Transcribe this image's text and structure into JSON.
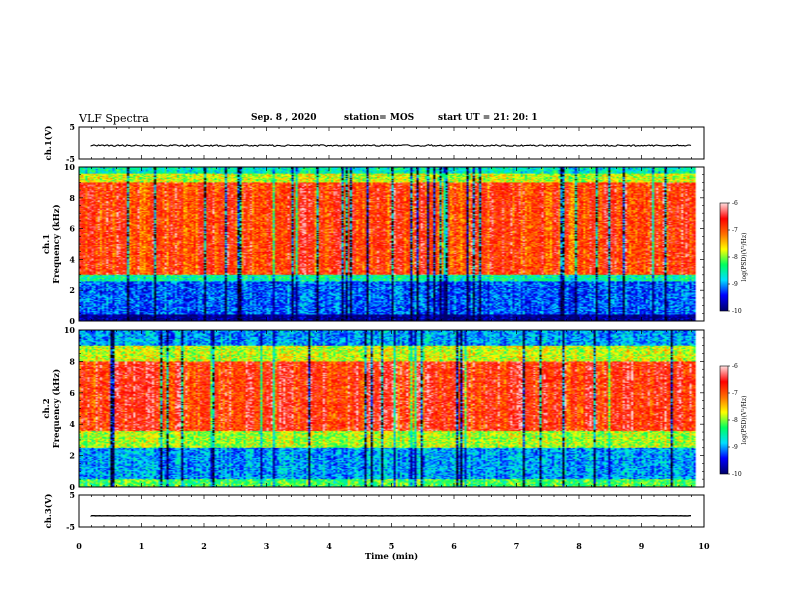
{
  "header": {
    "title": "VLF Spectra",
    "date": "Sep. 8 , 2020",
    "station": "station= MOS",
    "start": "start UT = 21: 20: 1"
  },
  "colors": {
    "scale": [
      "#00006e",
      "#0000ff",
      "#00e0ff",
      "#00ff60",
      "#ffff00",
      "#ff7000",
      "#ff0000",
      "#ffd8d8"
    ]
  },
  "chart_data": [
    {
      "type": "line",
      "name": "ch1-voltage",
      "ylabel": "ch.1(V)",
      "ylim": [
        -5,
        5
      ],
      "yticks": [
        "5",
        "-5"
      ],
      "xlim": [
        0,
        10
      ],
      "trace_level": -0.8
    },
    {
      "type": "heatmap",
      "name": "ch1-spectrogram",
      "ylabel": "ch.1\nFrequency (kHz)",
      "ylim": [
        0,
        10
      ],
      "yticks": [
        "0",
        "2",
        "4",
        "6",
        "8",
        "10"
      ],
      "xlim": [
        0,
        10
      ],
      "data_xmax": 9.85,
      "bands": [
        {
          "from": 0,
          "to": 0.4,
          "level": -9.9
        },
        {
          "from": 0.4,
          "to": 2.6,
          "level": -9.2
        },
        {
          "from": 2.6,
          "to": 3.0,
          "level": -8.5
        },
        {
          "from": 3.0,
          "to": 9.0,
          "level": -6.8
        },
        {
          "from": 9.0,
          "to": 9.6,
          "level": -7.8
        },
        {
          "from": 9.6,
          "to": 10,
          "level": -8.6
        }
      ],
      "colorbar": {
        "ticks": [
          "-6",
          "-7",
          "-8",
          "-9",
          "-10"
        ],
        "label": "log(PSD)(V²/Hz)",
        "range": [
          -10,
          -6
        ]
      }
    },
    {
      "type": "heatmap",
      "name": "ch2-spectrogram",
      "ylabel": "ch.2\nFrequency (kHz)",
      "ylim": [
        0,
        10
      ],
      "yticks": [
        "0",
        "2",
        "4",
        "6",
        "8",
        "10"
      ],
      "xlim": [
        0,
        10
      ],
      "data_xmax": 9.85,
      "bands": [
        {
          "from": 0,
          "to": 0.5,
          "level": -8.2
        },
        {
          "from": 0.5,
          "to": 2.5,
          "level": -9.0
        },
        {
          "from": 2.5,
          "to": 3.6,
          "level": -7.9
        },
        {
          "from": 3.6,
          "to": 8.0,
          "level": -6.7
        },
        {
          "from": 8.0,
          "to": 9.0,
          "level": -7.8
        },
        {
          "from": 9.0,
          "to": 10,
          "level": -9.0
        }
      ],
      "colorbar": {
        "ticks": [
          "-6",
          "-7",
          "-8",
          "-9",
          "-10"
        ],
        "label": "log(PSD)(V²/Hz)",
        "range": [
          -10,
          -6
        ]
      }
    },
    {
      "type": "line",
      "name": "ch3-voltage",
      "ylabel": "ch.3(V)",
      "ylim": [
        -5,
        5
      ],
      "yticks": [
        "5",
        "-5"
      ],
      "xlim": [
        0,
        10
      ],
      "trace_level": -1.5
    }
  ],
  "xaxis": {
    "label": "Time (min)",
    "ticks": [
      "0",
      "1",
      "2",
      "3",
      "4",
      "5",
      "6",
      "7",
      "8",
      "9",
      "10"
    ],
    "range": [
      0,
      10
    ]
  }
}
